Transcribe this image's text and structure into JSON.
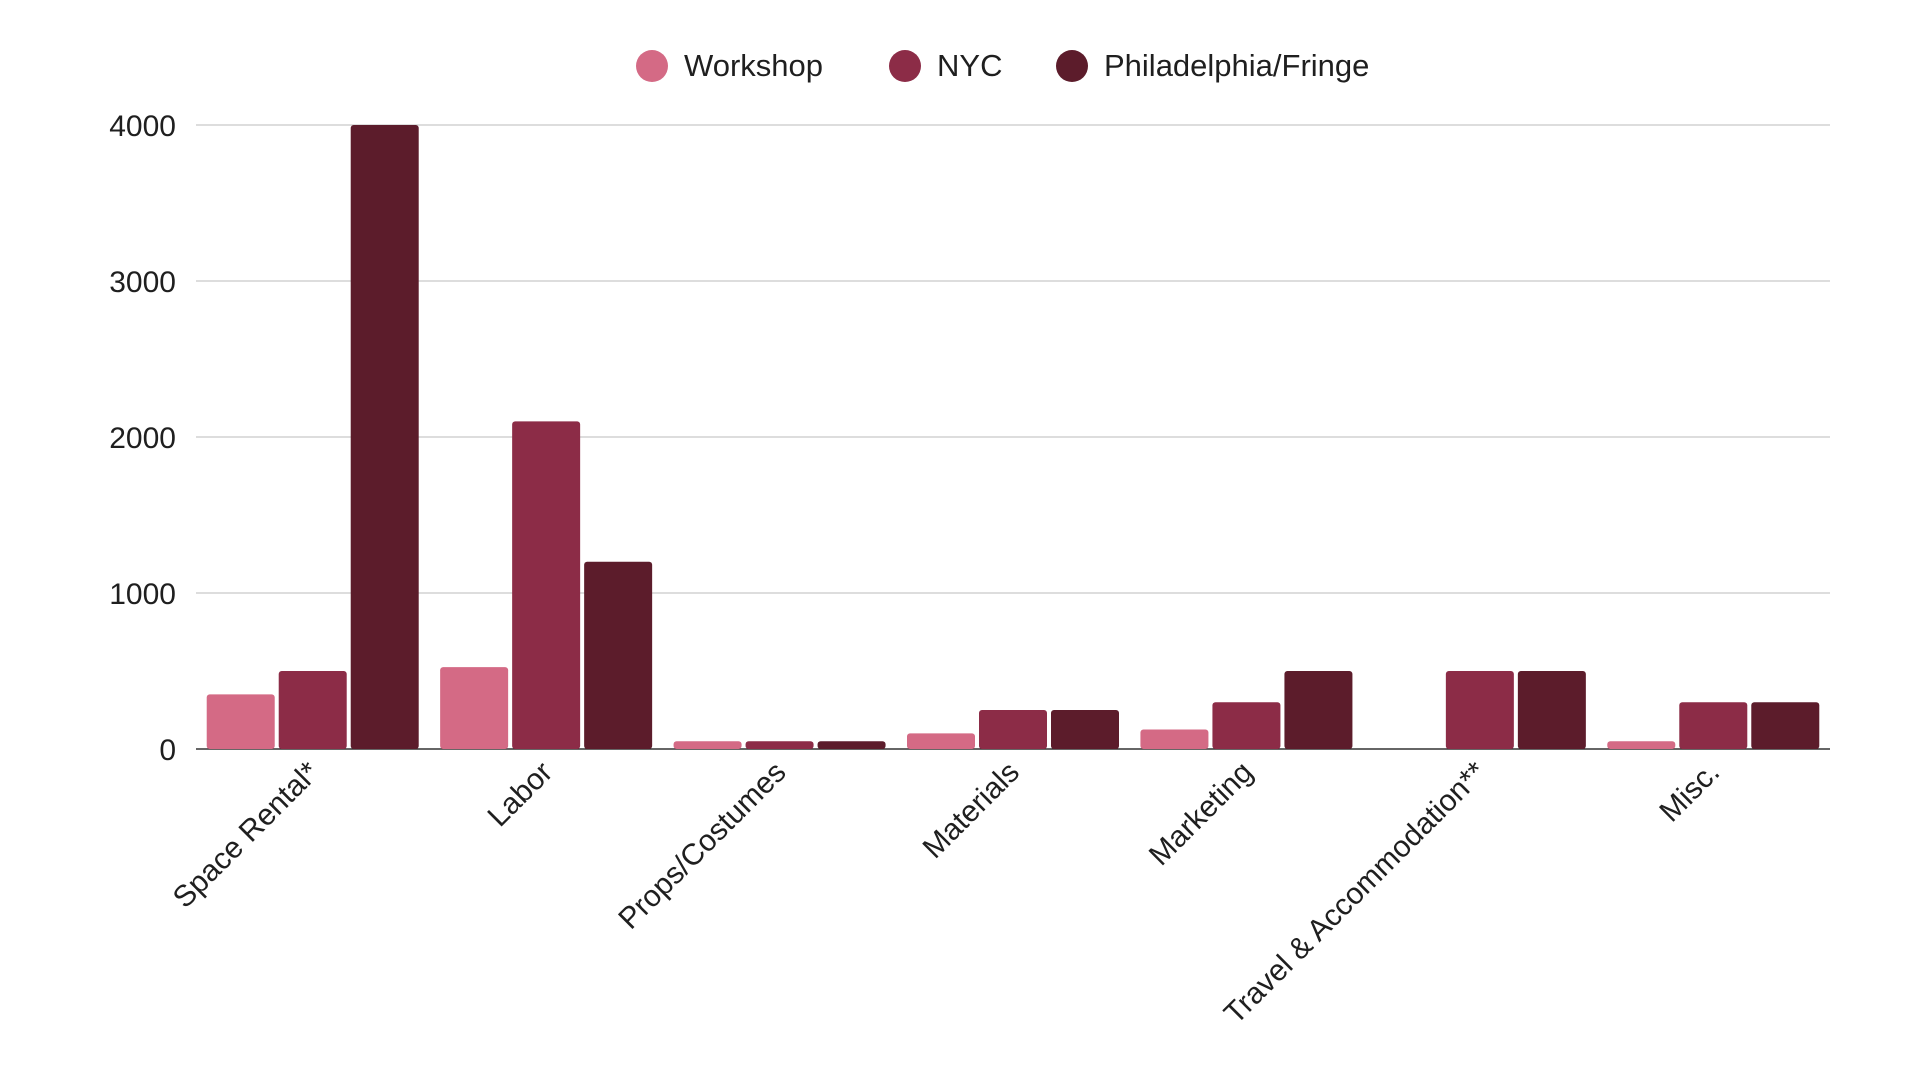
{
  "chart_data": {
    "type": "bar",
    "title": "",
    "xlabel": "",
    "ylabel": "",
    "ylim": [
      0,
      4000
    ],
    "yticks": [
      "0",
      "1000",
      "2000",
      "3000",
      "4000"
    ],
    "grid": true,
    "legend_position": "top-center",
    "categories": [
      "Space Rental*",
      "Labor",
      "Props/Costumes",
      "Materials",
      "Marketing",
      "Travel & Accommodation**",
      "Misc."
    ],
    "series": [
      {
        "name": "Workshop",
        "color": "#d46a85",
        "values": [
          350,
          525,
          50,
          100,
          125,
          0,
          50
        ]
      },
      {
        "name": "NYC",
        "color": "#8c2c47",
        "values": [
          500,
          2100,
          50,
          250,
          300,
          500,
          300
        ]
      },
      {
        "name": "Philadelphia/Fringe",
        "color": "#5c1c2b",
        "values": [
          4000,
          1200,
          50,
          250,
          500,
          500,
          300
        ]
      }
    ]
  }
}
